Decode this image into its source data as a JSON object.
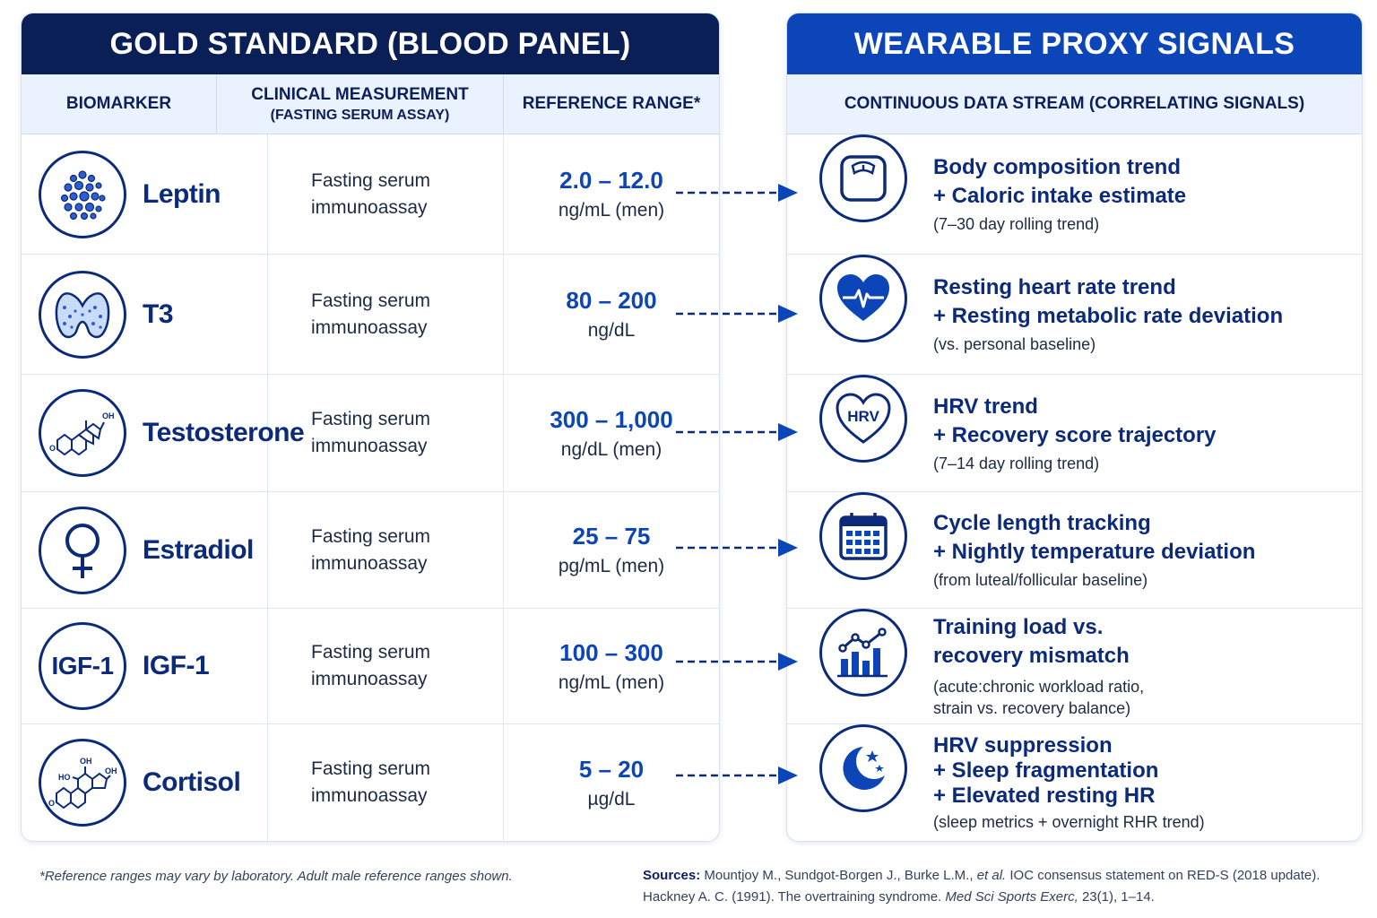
{
  "left": {
    "title": "GOLD STANDARD (BLOOD PANEL)",
    "col_biomarker": "BIOMARKER",
    "col_measurement": "CLINICAL MEASUREMENT",
    "col_measurement_sub": "(FASTING SERUM ASSAY)",
    "col_range": "REFERENCE RANGE*"
  },
  "right": {
    "title": "WEARABLE PROXY SIGNALS",
    "col_stream": "CONTINUOUS DATA STREAM (CORRELATING SIGNALS)"
  },
  "rows": [
    {
      "name": "Leptin",
      "icon": "leptin-cells-icon",
      "measure_1": "Fasting serum",
      "measure_2": "immunoassay",
      "range": "2.0 – 12.0",
      "unit": "ng/mL (men)",
      "signal_icon": "scale-icon",
      "lines": [
        "Body composition trend",
        "+ Caloric intake estimate"
      ],
      "notes": [
        "(7–30 day rolling trend)"
      ]
    },
    {
      "name": "T3",
      "icon": "thyroid-icon",
      "measure_1": "Fasting serum",
      "measure_2": "immunoassay",
      "range": "80 – 200",
      "unit": "ng/dL",
      "signal_icon": "heart-pulse-icon",
      "lines": [
        "Resting heart rate trend",
        "+ Resting metabolic rate deviation"
      ],
      "notes": [
        "(vs. personal baseline)"
      ]
    },
    {
      "name": "Testosterone",
      "icon": "steroid-molecule-icon",
      "measure_1": "Fasting serum",
      "measure_2": "immunoassay",
      "range": "300 – 1,000",
      "unit": "ng/dL (men)",
      "signal_icon": "hrv-heart-icon",
      "lines": [
        "HRV trend",
        "+ Recovery score trajectory"
      ],
      "notes": [
        "(7–14 day rolling trend)"
      ]
    },
    {
      "name": "Estradiol",
      "icon": "venus-symbol-icon",
      "measure_1": "Fasting serum",
      "measure_2": "immunoassay",
      "range": "25 – 75",
      "unit": "pg/mL (men)",
      "signal_icon": "calendar-icon",
      "lines": [
        "Cycle length tracking",
        "+ Nightly temperature deviation"
      ],
      "notes": [
        "(from luteal/follicular baseline)"
      ]
    },
    {
      "name": "IGF-1",
      "icon_text": "IGF-1",
      "icon": "igf1-text-icon",
      "measure_1": "Fasting serum",
      "measure_2": "immunoassay",
      "range": "100 – 300",
      "unit": "ng/mL (men)",
      "signal_icon": "bar-trend-icon",
      "lines": [
        "Training load vs.",
        "recovery mismatch"
      ],
      "notes": [
        "(acute:chronic workload ratio,",
        "strain vs. recovery balance)"
      ]
    },
    {
      "name": "Cortisol",
      "icon": "cortisol-molecule-icon",
      "measure_1": "Fasting serum",
      "measure_2": "immunoassay",
      "range": "5 – 20",
      "unit": "µg/dL",
      "signal_icon": "moon-stars-icon",
      "lines": [
        "HRV suppression",
        "+ Sleep fragmentation",
        "+ Elevated resting HR"
      ],
      "notes": [
        "(sleep metrics + overnight RHR trend)"
      ]
    }
  ],
  "molecule_labels": {
    "oh": "OH",
    "o": "O",
    "ho": "HO"
  },
  "hrv_label": "HRV",
  "footnote": "*Reference ranges may vary by laboratory. Adult male reference ranges shown.",
  "sources": {
    "label": "Sources:",
    "line1_a": "Mountjoy M., Sundgot-Borgen J., Burke L.M.,",
    "line1_b": "et al.",
    "line1_c": "IOC consensus statement on RED-S (2018 update).",
    "line2_a": "Hackney A. C. (1991). The overtraining syndrome.",
    "line2_b": "Med Sci Sports Exerc,",
    "line2_c": "23(1), 1–14."
  },
  "colors": {
    "navy": "#0a1f55",
    "blue": "#0b45b8",
    "icon_stroke": "#0b2a7a"
  }
}
